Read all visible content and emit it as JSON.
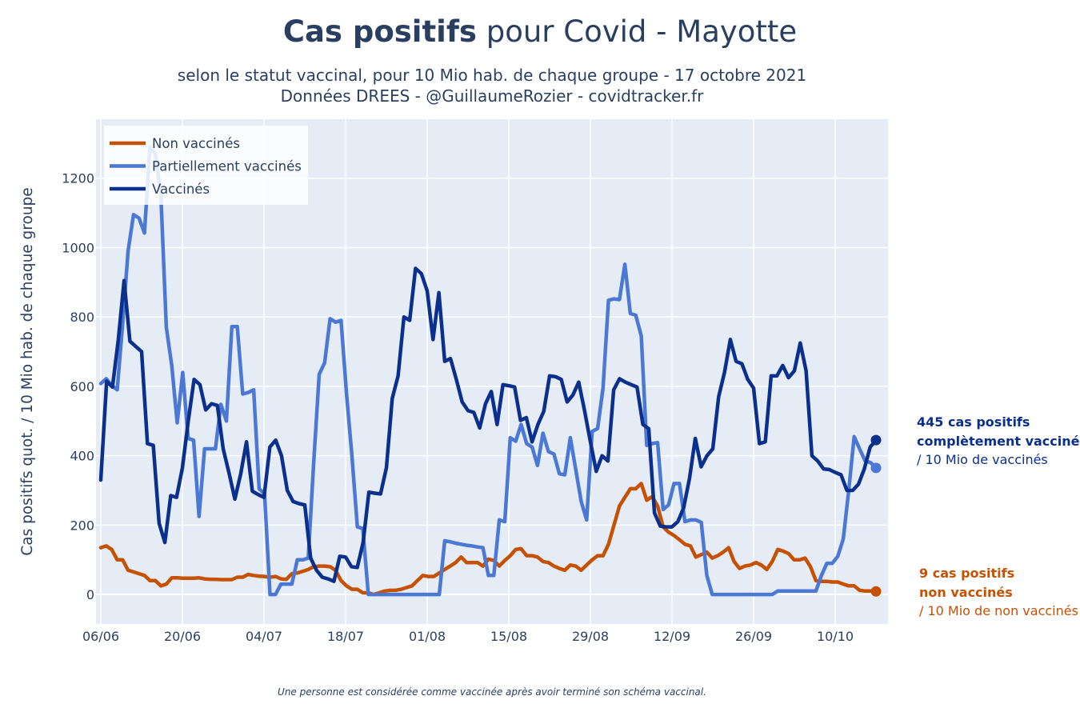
{
  "title": {
    "bold": "Cas positifs",
    "rest": " pour Covid - Mayotte"
  },
  "subtitle_line1": "selon le statut vaccinal, pour 10 Mio hab. de chaque groupe - 17 octobre 2021",
  "subtitle_line2": "Données DREES - @GuillaumeRozier - covidtracker.fr",
  "footnote": "Une personne est considérée comme vaccinée après avoir terminé son schéma vaccinal.",
  "annotations": {
    "vaccinated": {
      "line1": "445 cas positifs",
      "line2": "complètement vaccinés",
      "line3": "/ 10 Mio de vaccinés",
      "color": "#0a2f8c"
    },
    "unvaccinated": {
      "line1": "9 cas positifs",
      "line2": "non vaccinés",
      "line3": "/ 10 Mio de non vaccinés",
      "color": "#c65102"
    }
  },
  "chart_data": {
    "type": "line",
    "title": "Cas positifs pour Covid - Mayotte",
    "ylabel": "Cas positifs quot. / 10 Mio hab. de chaque groupe",
    "xlabel": "",
    "ylim": [
      -85,
      1370
    ],
    "yticks": [
      0,
      200,
      400,
      600,
      800,
      1000,
      1200
    ],
    "x_start": "2021-06-06",
    "x_end": "2021-10-17",
    "xticks": [
      {
        "date": "2021-06-06",
        "label": "06/06"
      },
      {
        "date": "2021-06-20",
        "label": "20/06"
      },
      {
        "date": "2021-07-04",
        "label": "04/07"
      },
      {
        "date": "2021-07-18",
        "label": "18/07"
      },
      {
        "date": "2021-08-01",
        "label": "01/08"
      },
      {
        "date": "2021-08-15",
        "label": "15/08"
      },
      {
        "date": "2021-08-29",
        "label": "29/08"
      },
      {
        "date": "2021-09-12",
        "label": "12/09"
      },
      {
        "date": "2021-09-26",
        "label": "26/09"
      },
      {
        "date": "2021-10-10",
        "label": "10/10"
      }
    ],
    "grid": true,
    "legend_position": "top-left",
    "series": [
      {
        "name": "Non vaccinés",
        "color": "#c65102",
        "values": [
          135,
          140,
          130,
          100,
          100,
          70,
          65,
          60,
          55,
          40,
          40,
          25,
          30,
          48,
          48,
          47,
          47,
          47,
          48,
          45,
          44,
          44,
          43,
          43,
          43,
          50,
          50,
          58,
          55,
          53,
          52,
          50,
          52,
          45,
          44,
          60,
          62,
          67,
          72,
          80,
          82,
          82,
          80,
          70,
          40,
          25,
          15,
          15,
          5,
          5,
          0,
          5,
          10,
          12,
          12,
          15,
          20,
          25,
          40,
          55,
          52,
          52,
          62,
          72,
          82,
          92,
          108,
          92,
          92,
          92,
          82,
          102,
          98,
          82,
          98,
          112,
          130,
          132,
          112,
          112,
          108,
          95,
          92,
          82,
          75,
          70,
          85,
          82,
          70,
          85,
          100,
          112,
          112,
          145,
          200,
          255,
          280,
          305,
          305,
          320,
          272,
          282,
          255,
          195,
          180,
          170,
          158,
          145,
          140,
          108,
          115,
          122,
          105,
          112,
          122,
          135,
          95,
          75,
          82,
          85,
          92,
          85,
          72,
          95,
          130,
          125,
          118,
          100,
          100,
          105,
          80,
          40,
          38,
          38,
          36,
          36,
          30,
          25,
          25,
          12,
          10,
          10,
          9
        ]
      },
      {
        "name": "Partiellement vaccinés",
        "color": "#4a78d4",
        "values": [
          608,
          622,
          603,
          590,
          780,
          990,
          1095,
          1085,
          1042,
          1290,
          1270,
          1150,
          770,
          660,
          495,
          640,
          450,
          445,
          225,
          420,
          420,
          420,
          548,
          500,
          772,
          772,
          578,
          582,
          590,
          305,
          290,
          0,
          0,
          30,
          30,
          30,
          100,
          100,
          105,
          380,
          635,
          668,
          795,
          785,
          790,
          580,
          400,
          195,
          190,
          0,
          0,
          0,
          0,
          0,
          0,
          0,
          0,
          0,
          0,
          0,
          0,
          0,
          0,
          155,
          152,
          148,
          145,
          142,
          140,
          137,
          135,
          55,
          55,
          215,
          210,
          452,
          442,
          490,
          435,
          425,
          372,
          465,
          412,
          405,
          348,
          345,
          452,
          360,
          268,
          215,
          470,
          478,
          595,
          848,
          852,
          850,
          952,
          810,
          805,
          745,
          430,
          435,
          438,
          245,
          258,
          320,
          320,
          210,
          215,
          215,
          208,
          55,
          0,
          0,
          0,
          0,
          0,
          0,
          0,
          0,
          0,
          0,
          0,
          0,
          10,
          10,
          10,
          10,
          10,
          10,
          10,
          10,
          55,
          90,
          90,
          110,
          160,
          300,
          455,
          420,
          385,
          380,
          365
        ]
      },
      {
        "name": "Vaccinés",
        "color": "#0a2f8c",
        "values": [
          330,
          615,
          598,
          735,
          905,
          730,
          715,
          700,
          435,
          430,
          205,
          150,
          285,
          280,
          365,
          500,
          620,
          605,
          532,
          550,
          545,
          420,
          350,
          275,
          348,
          440,
          298,
          288,
          280,
          425,
          445,
          400,
          300,
          268,
          262,
          258,
          105,
          70,
          50,
          45,
          38,
          110,
          108,
          80,
          78,
          150,
          295,
          292,
          290,
          365,
          565,
          630,
          800,
          790,
          940,
          925,
          875,
          735,
          870,
          672,
          680,
          620,
          555,
          530,
          525,
          480,
          550,
          585,
          490,
          605,
          602,
          598,
          502,
          510,
          440,
          490,
          528,
          630,
          628,
          620,
          555,
          575,
          612,
          530,
          440,
          355,
          400,
          385,
          590,
          622,
          612,
          605,
          598,
          490,
          478,
          235,
          197,
          195,
          195,
          210,
          250,
          335,
          450,
          368,
          400,
          420,
          570,
          640,
          735,
          672,
          665,
          620,
          595,
          435,
          440,
          630,
          630,
          660,
          625,
          645,
          725,
          645,
          400,
          385,
          362,
          360,
          352,
          345,
          300,
          300,
          318,
          362,
          425,
          445
        ]
      }
    ]
  }
}
